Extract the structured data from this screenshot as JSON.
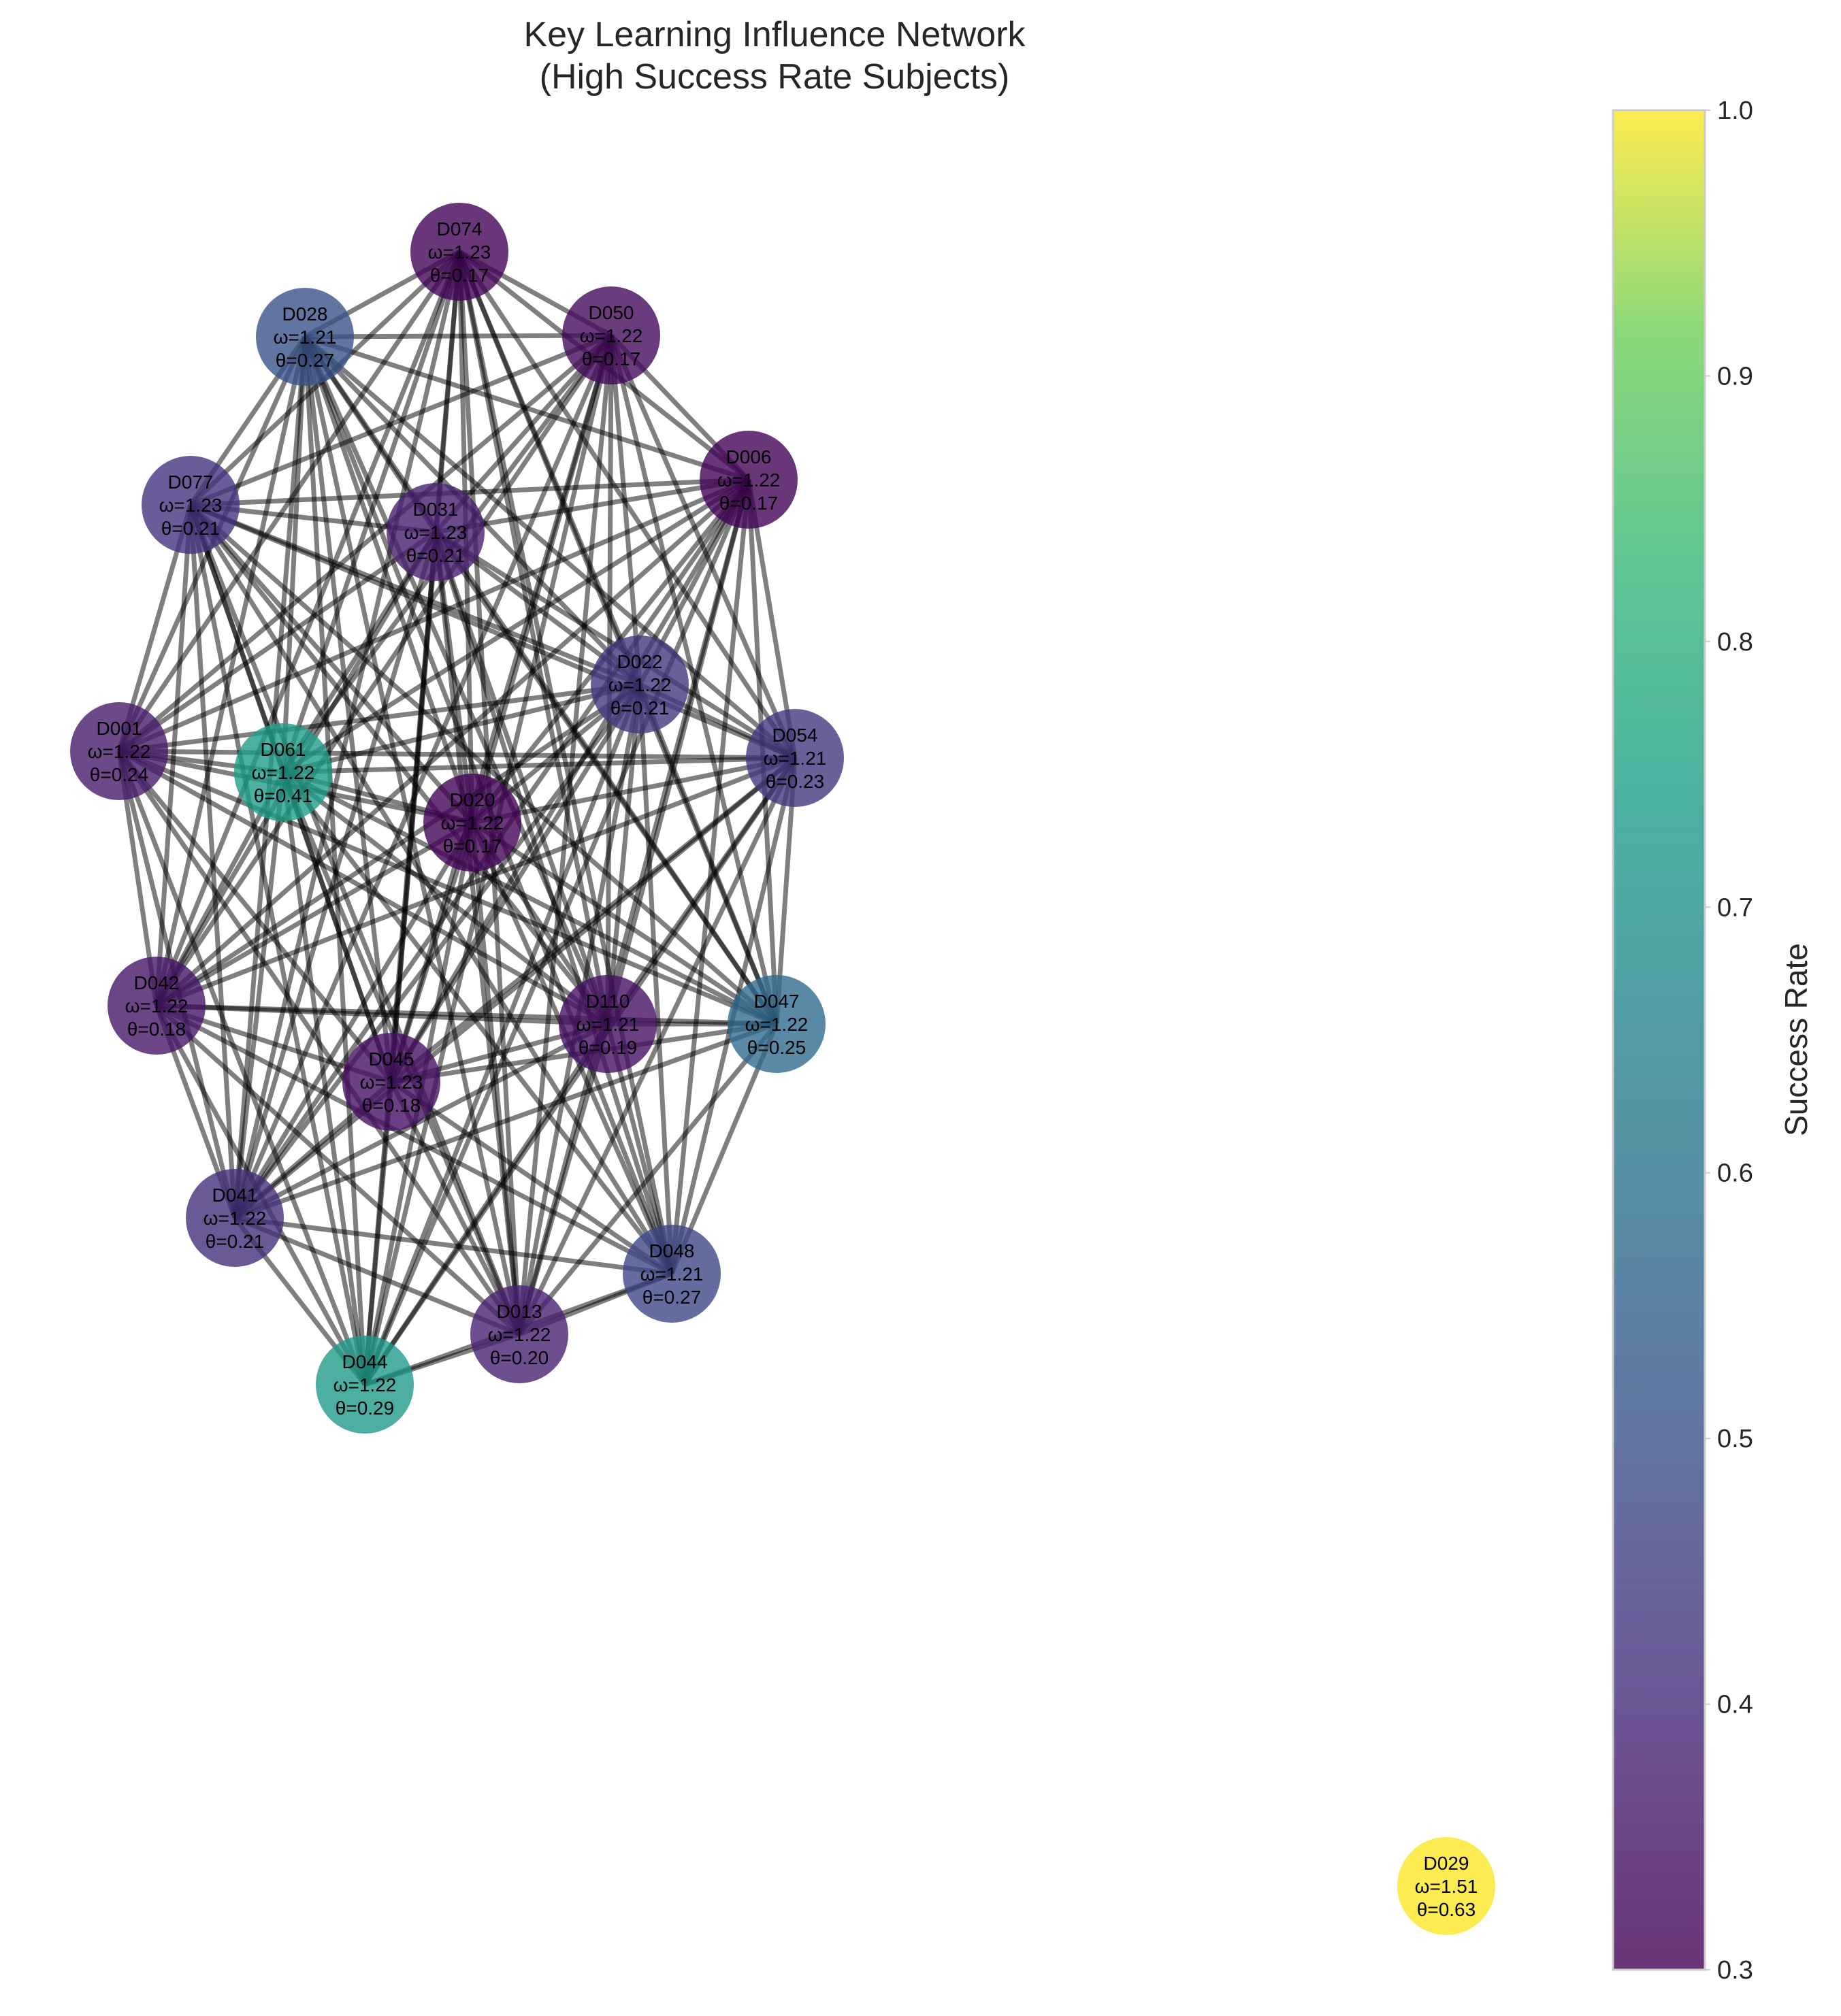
{
  "title": {
    "line1": "Key Learning Influence Network",
    "line2": "(High Success Rate Subjects)"
  },
  "colorbar": {
    "label": "Success Rate",
    "min": 0.3,
    "max": 1.0,
    "ticks": [
      "0.3",
      "0.4",
      "0.5",
      "0.6",
      "0.7",
      "0.8",
      "0.9",
      "1.0"
    ],
    "colormap": "viridis"
  },
  "edge_color": "#000000",
  "nodes": [
    {
      "id": "D074",
      "omega": "ω=1.23",
      "theta": "θ=0.17",
      "success": 0.31
    },
    {
      "id": "D050",
      "omega": "ω=1.22",
      "theta": "θ=0.17",
      "success": 0.32
    },
    {
      "id": "D028",
      "omega": "ω=1.21",
      "theta": "θ=0.27",
      "success": 0.5
    },
    {
      "id": "D006",
      "omega": "ω=1.22",
      "theta": "θ=0.17",
      "success": 0.31
    },
    {
      "id": "D077",
      "omega": "ω=1.23",
      "theta": "θ=0.21",
      "success": 0.42
    },
    {
      "id": "D031",
      "omega": "ω=1.23",
      "theta": "θ=0.21",
      "success": 0.37
    },
    {
      "id": "D022",
      "omega": "ω=1.22",
      "theta": "θ=0.21",
      "success": 0.43
    },
    {
      "id": "D001",
      "omega": "ω=1.22",
      "theta": "θ=0.24",
      "success": 0.36
    },
    {
      "id": "D061",
      "omega": "ω=1.22",
      "theta": "θ=0.41",
      "success": 0.74
    },
    {
      "id": "D054",
      "omega": "ω=1.21",
      "theta": "θ=0.23",
      "success": 0.43
    },
    {
      "id": "D020",
      "omega": "ω=1.22",
      "theta": "θ=0.17",
      "success": 0.31
    },
    {
      "id": "D042",
      "omega": "ω=1.22",
      "theta": "θ=0.18",
      "success": 0.35
    },
    {
      "id": "D110",
      "omega": "ω=1.21",
      "theta": "θ=0.19",
      "success": 0.34
    },
    {
      "id": "D047",
      "omega": "ω=1.22",
      "theta": "θ=0.25",
      "success": 0.58
    },
    {
      "id": "D045",
      "omega": "ω=1.23",
      "theta": "θ=0.18",
      "success": 0.34
    },
    {
      "id": "D041",
      "omega": "ω=1.22",
      "theta": "θ=0.21",
      "success": 0.41
    },
    {
      "id": "D048",
      "omega": "ω=1.21",
      "theta": "θ=0.27",
      "success": 0.47
    },
    {
      "id": "D013",
      "omega": "ω=1.22",
      "theta": "θ=0.20",
      "success": 0.38
    },
    {
      "id": "D044",
      "omega": "ω=1.22",
      "theta": "θ=0.29",
      "success": 0.73
    },
    {
      "id": "D029",
      "omega": "ω=1.51",
      "theta": "θ=0.63",
      "success": 1.0
    }
  ],
  "edges": [
    [
      "D074",
      "D050"
    ],
    [
      "D074",
      "D028"
    ],
    [
      "D074",
      "D006"
    ],
    [
      "D074",
      "D077"
    ],
    [
      "D074",
      "D031"
    ],
    [
      "D074",
      "D022"
    ],
    [
      "D074",
      "D001"
    ],
    [
      "D074",
      "D061"
    ],
    [
      "D074",
      "D054"
    ],
    [
      "D074",
      "D020"
    ],
    [
      "D074",
      "D042"
    ],
    [
      "D074",
      "D110"
    ],
    [
      "D074",
      "D047"
    ],
    [
      "D074",
      "D045"
    ],
    [
      "D074",
      "D041"
    ],
    [
      "D074",
      "D013"
    ],
    [
      "D074",
      "D048"
    ],
    [
      "D050",
      "D028"
    ],
    [
      "D050",
      "D006"
    ],
    [
      "D050",
      "D077"
    ],
    [
      "D050",
      "D031"
    ],
    [
      "D050",
      "D022"
    ],
    [
      "D050",
      "D001"
    ],
    [
      "D050",
      "D061"
    ],
    [
      "D050",
      "D054"
    ],
    [
      "D050",
      "D020"
    ],
    [
      "D050",
      "D042"
    ],
    [
      "D050",
      "D110"
    ],
    [
      "D050",
      "D047"
    ],
    [
      "D050",
      "D045"
    ],
    [
      "D050",
      "D041"
    ],
    [
      "D050",
      "D044"
    ],
    [
      "D050",
      "D013"
    ],
    [
      "D028",
      "D006"
    ],
    [
      "D028",
      "D077"
    ],
    [
      "D028",
      "D031"
    ],
    [
      "D028",
      "D022"
    ],
    [
      "D028",
      "D001"
    ],
    [
      "D028",
      "D061"
    ],
    [
      "D028",
      "D054"
    ],
    [
      "D028",
      "D020"
    ],
    [
      "D028",
      "D042"
    ],
    [
      "D028",
      "D110"
    ],
    [
      "D028",
      "D047"
    ],
    [
      "D028",
      "D045"
    ],
    [
      "D028",
      "D041"
    ],
    [
      "D028",
      "D044"
    ],
    [
      "D028",
      "D013"
    ],
    [
      "D028",
      "D048"
    ],
    [
      "D006",
      "D077"
    ],
    [
      "D006",
      "D031"
    ],
    [
      "D006",
      "D022"
    ],
    [
      "D006",
      "D001"
    ],
    [
      "D006",
      "D061"
    ],
    [
      "D006",
      "D054"
    ],
    [
      "D006",
      "D020"
    ],
    [
      "D006",
      "D042"
    ],
    [
      "D006",
      "D110"
    ],
    [
      "D006",
      "D047"
    ],
    [
      "D006",
      "D045"
    ],
    [
      "D006",
      "D041"
    ],
    [
      "D006",
      "D044"
    ],
    [
      "D006",
      "D013"
    ],
    [
      "D006",
      "D048"
    ],
    [
      "D077",
      "D031"
    ],
    [
      "D077",
      "D022"
    ],
    [
      "D077",
      "D001"
    ],
    [
      "D077",
      "D061"
    ],
    [
      "D077",
      "D054"
    ],
    [
      "D077",
      "D020"
    ],
    [
      "D077",
      "D042"
    ],
    [
      "D077",
      "D110"
    ],
    [
      "D077",
      "D047"
    ],
    [
      "D077",
      "D045"
    ],
    [
      "D077",
      "D041"
    ],
    [
      "D077",
      "D044"
    ],
    [
      "D077",
      "D013"
    ],
    [
      "D077",
      "D048"
    ],
    [
      "D031",
      "D022"
    ],
    [
      "D031",
      "D001"
    ],
    [
      "D031",
      "D061"
    ],
    [
      "D031",
      "D054"
    ],
    [
      "D031",
      "D020"
    ],
    [
      "D031",
      "D042"
    ],
    [
      "D031",
      "D110"
    ],
    [
      "D031",
      "D047"
    ],
    [
      "D031",
      "D045"
    ],
    [
      "D031",
      "D041"
    ],
    [
      "D031",
      "D044"
    ],
    [
      "D031",
      "D013"
    ],
    [
      "D031",
      "D048"
    ],
    [
      "D022",
      "D001"
    ],
    [
      "D022",
      "D061"
    ],
    [
      "D022",
      "D054"
    ],
    [
      "D022",
      "D020"
    ],
    [
      "D022",
      "D042"
    ],
    [
      "D022",
      "D110"
    ],
    [
      "D022",
      "D047"
    ],
    [
      "D022",
      "D045"
    ],
    [
      "D022",
      "D041"
    ],
    [
      "D022",
      "D044"
    ],
    [
      "D022",
      "D013"
    ],
    [
      "D022",
      "D048"
    ],
    [
      "D001",
      "D061"
    ],
    [
      "D001",
      "D054"
    ],
    [
      "D001",
      "D020"
    ],
    [
      "D001",
      "D042"
    ],
    [
      "D001",
      "D110"
    ],
    [
      "D001",
      "D047"
    ],
    [
      "D001",
      "D045"
    ],
    [
      "D001",
      "D041"
    ],
    [
      "D001",
      "D044"
    ],
    [
      "D001",
      "D013"
    ],
    [
      "D061",
      "D054"
    ],
    [
      "D061",
      "D020"
    ],
    [
      "D061",
      "D042"
    ],
    [
      "D061",
      "D110"
    ],
    [
      "D061",
      "D047"
    ],
    [
      "D061",
      "D045"
    ],
    [
      "D061",
      "D041"
    ],
    [
      "D061",
      "D044"
    ],
    [
      "D061",
      "D013"
    ],
    [
      "D061",
      "D048"
    ],
    [
      "D054",
      "D020"
    ],
    [
      "D054",
      "D042"
    ],
    [
      "D054",
      "D110"
    ],
    [
      "D054",
      "D047"
    ],
    [
      "D054",
      "D045"
    ],
    [
      "D054",
      "D041"
    ],
    [
      "D054",
      "D044"
    ],
    [
      "D054",
      "D013"
    ],
    [
      "D054",
      "D048"
    ],
    [
      "D020",
      "D042"
    ],
    [
      "D020",
      "D110"
    ],
    [
      "D020",
      "D047"
    ],
    [
      "D020",
      "D045"
    ],
    [
      "D020",
      "D041"
    ],
    [
      "D020",
      "D044"
    ],
    [
      "D020",
      "D013"
    ],
    [
      "D020",
      "D048"
    ],
    [
      "D042",
      "D110"
    ],
    [
      "D042",
      "D047"
    ],
    [
      "D042",
      "D045"
    ],
    [
      "D042",
      "D041"
    ],
    [
      "D042",
      "D044"
    ],
    [
      "D042",
      "D013"
    ],
    [
      "D042",
      "D048"
    ],
    [
      "D110",
      "D047"
    ],
    [
      "D110",
      "D045"
    ],
    [
      "D110",
      "D041"
    ],
    [
      "D110",
      "D044"
    ],
    [
      "D110",
      "D013"
    ],
    [
      "D110",
      "D048"
    ],
    [
      "D047",
      "D045"
    ],
    [
      "D047",
      "D041"
    ],
    [
      "D047",
      "D013"
    ],
    [
      "D047",
      "D048"
    ],
    [
      "D045",
      "D041"
    ],
    [
      "D045",
      "D044"
    ],
    [
      "D045",
      "D013"
    ],
    [
      "D045",
      "D048"
    ],
    [
      "D041",
      "D044"
    ],
    [
      "D041",
      "D013"
    ],
    [
      "D041",
      "D048"
    ],
    [
      "D044",
      "D013"
    ],
    [
      "D044",
      "D048"
    ],
    [
      "D013",
      "D048"
    ]
  ]
}
